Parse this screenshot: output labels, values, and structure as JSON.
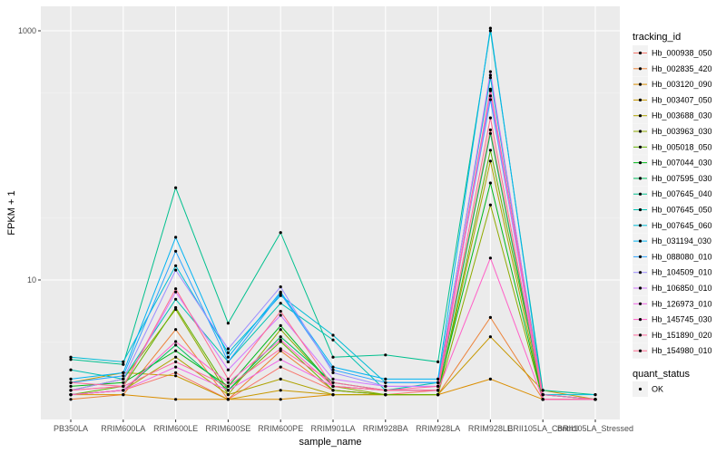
{
  "chart_data": {
    "type": "line",
    "xlabel": "sample_name",
    "ylabel": "FPKM + 1",
    "y_scale": "log10",
    "ylim": [
      1,
      1500
    ],
    "y_ticks": [
      10,
      1000
    ],
    "y_tick_labels": [
      "10",
      "1000"
    ],
    "categories": [
      "PB350LA",
      "RRIM600LA",
      "RRIM600LE",
      "RRIM600SE",
      "RRIM600PE",
      "RRIM901LA",
      "RRIM928BA",
      "RRIM928LA",
      "RRIM928LE",
      "BRII105LA_Control",
      "BRII105LA_Stressed"
    ],
    "legend_title": "tracking_id",
    "legend2_title": "quant_status",
    "legend2_entries": [
      {
        "label": "OK"
      }
    ],
    "series": [
      {
        "name": "Hb_000938_050",
        "color": "#F8766D",
        "values": [
          1.2,
          1.3,
          1.8,
          1.1,
          2.0,
          1.3,
          1.2,
          1.3,
          160,
          1.1,
          1.1
        ]
      },
      {
        "name": "Hb_002835_420",
        "color": "#EC8239",
        "values": [
          1.1,
          1.2,
          4.0,
          1.1,
          2.7,
          1.3,
          1.2,
          1.2,
          5.0,
          1.1,
          1.1
        ]
      },
      {
        "name": "Hb_003120_090",
        "color": "#DB8E00",
        "values": [
          1.2,
          1.2,
          1.1,
          1.1,
          1.1,
          1.2,
          1.2,
          1.2,
          1.6,
          1.1,
          1.1
        ]
      },
      {
        "name": "Hb_003407_050",
        "color": "#C79800",
        "values": [
          1.5,
          1.8,
          1.7,
          1.1,
          1.3,
          1.2,
          1.2,
          1.2,
          3.5,
          1.3,
          1.1
        ]
      },
      {
        "name": "Hb_003688_030",
        "color": "#AEA200",
        "values": [
          1.2,
          1.3,
          2.4,
          1.2,
          1.6,
          1.2,
          1.2,
          1.2,
          90,
          1.1,
          1.1
        ]
      },
      {
        "name": "Hb_003963_030",
        "color": "#8FAA00",
        "values": [
          1.3,
          1.6,
          5.8,
          1.2,
          4.0,
          1.4,
          1.2,
          1.2,
          40,
          1.1,
          1.1
        ]
      },
      {
        "name": "Hb_005018_050",
        "color": "#64B200",
        "values": [
          1.2,
          1.4,
          6.0,
          1.3,
          3.2,
          1.3,
          1.2,
          1.2,
          110,
          1.2,
          1.1
        ]
      },
      {
        "name": "Hb_007044_030",
        "color": "#00B81B",
        "values": [
          1.4,
          1.5,
          2.7,
          1.4,
          4.3,
          1.4,
          1.3,
          1.3,
          60,
          1.1,
          1.1
        ]
      },
      {
        "name": "Hb_007595_030",
        "color": "#00BD5C",
        "values": [
          1.2,
          1.3,
          3.0,
          1.3,
          3.5,
          1.5,
          1.3,
          1.3,
          150,
          1.1,
          1.1
        ]
      },
      {
        "name": "Hb_007645_040",
        "color": "#00C08E",
        "values": [
          2.3,
          2.1,
          55,
          4.5,
          24,
          2.4,
          2.5,
          2.2,
          1000,
          1.3,
          1.2
        ]
      },
      {
        "name": "Hb_007645_050",
        "color": "#00C1B2",
        "values": [
          1.9,
          1.6,
          7.0,
          2.2,
          6.5,
          3.3,
          1.3,
          1.5,
          440,
          1.1,
          1.1
        ]
      },
      {
        "name": "Hb_007645_060",
        "color": "#00BCD6",
        "values": [
          2.4,
          2.2,
          13,
          2.6,
          7.5,
          3.6,
          1.5,
          1.5,
          420,
          1.2,
          1.2
        ]
      },
      {
        "name": "Hb_031194_030",
        "color": "#00B3F2",
        "values": [
          1.6,
          1.8,
          22,
          2.4,
          8.0,
          2.0,
          1.6,
          1.6,
          1050,
          1.2,
          1.1
        ]
      },
      {
        "name": "Hb_088080_010",
        "color": "#29A3FF",
        "values": [
          1.5,
          1.7,
          17,
          2.2,
          7.8,
          1.9,
          1.5,
          1.5,
          280,
          1.2,
          1.1
        ]
      },
      {
        "name": "Hb_104509_010",
        "color": "#9C8DFF",
        "values": [
          1.3,
          1.6,
          12,
          2.8,
          8.8,
          1.8,
          1.4,
          1.4,
          300,
          1.1,
          1.1
        ]
      },
      {
        "name": "Hb_106850_010",
        "color": "#D277FF",
        "values": [
          1.3,
          1.4,
          8.0,
          1.9,
          5.2,
          1.6,
          1.4,
          1.4,
          470,
          1.1,
          1.1
        ]
      },
      {
        "name": "Hb_126973_010",
        "color": "#F265E7",
        "values": [
          1.2,
          1.3,
          2.0,
          1.3,
          2.3,
          1.4,
          1.3,
          1.3,
          330,
          1.1,
          1.1
        ]
      },
      {
        "name": "Hb_145745_030",
        "color": "#FF61C7",
        "values": [
          1.2,
          1.3,
          3.2,
          1.5,
          3.3,
          1.4,
          1.3,
          1.3,
          15,
          1.1,
          1.1
        ]
      },
      {
        "name": "Hb_151890_020",
        "color": "#FF689E",
        "values": [
          1.5,
          1.4,
          2.2,
          1.4,
          2.8,
          1.5,
          1.3,
          1.4,
          340,
          1.2,
          1.1
        ]
      },
      {
        "name": "Hb_154980_010",
        "color": "#FF6C91",
        "values": [
          1.3,
          1.4,
          8.5,
          1.6,
          5.6,
          1.4,
          1.3,
          1.3,
          200,
          1.1,
          1.1
        ]
      }
    ]
  }
}
